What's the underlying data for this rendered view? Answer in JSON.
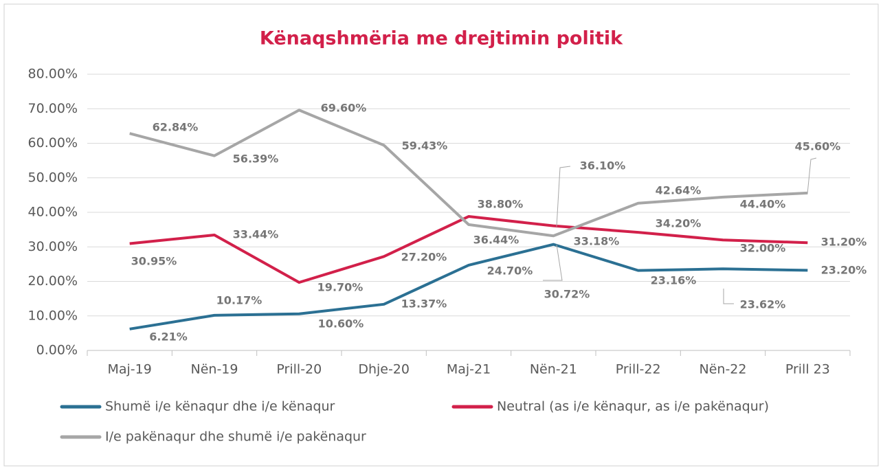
{
  "chart_data": {
    "type": "line",
    "title": "Kënaqshmëria me drejtimin politik",
    "categories": [
      "Maj-19",
      "Nën-19",
      "Prill-20",
      "Dhje-20",
      "Maj-21",
      "Nën-21",
      "Prill-22",
      "Nën-22",
      "Prill 23"
    ],
    "series": [
      {
        "name": "Shumë i/e kënaqur dhe i/e kënaqur",
        "color": "#2b7093",
        "values": [
          6.21,
          10.17,
          10.6,
          13.37,
          24.7,
          30.72,
          23.16,
          23.62,
          23.2
        ],
        "value_labels": [
          "6.21%",
          "10.17%",
          "10.60%",
          "13.37%",
          "24.70%",
          "30.72%",
          "23.16%",
          "23.62%",
          "23.20%"
        ]
      },
      {
        "name": "Neutral (as i/e kënaqur, as i/e pakënaqur)",
        "color": "#d2204a",
        "values": [
          30.95,
          33.44,
          19.7,
          27.2,
          38.8,
          36.1,
          34.2,
          32.0,
          31.2
        ],
        "value_labels": [
          "30.95%",
          "33.44%",
          "19.70%",
          "27.20%",
          "38.80%",
          "36.10%",
          "34.20%",
          "32.00%",
          "31.20%"
        ]
      },
      {
        "name": "I/e pakënaqur dhe shumë i/e pakënaqur",
        "color": "#a6a6a6",
        "values": [
          62.84,
          56.39,
          69.6,
          59.43,
          36.44,
          33.18,
          42.64,
          44.4,
          45.6
        ],
        "value_labels": [
          "62.84%",
          "56.39%",
          "69.60%",
          "59.43%",
          "36.44%",
          "33.18%",
          "42.64%",
          "44.40%",
          "45.60%"
        ]
      }
    ],
    "ylim": [
      0,
      80
    ],
    "yticks": [
      {
        "value": 0,
        "label": "0.00%"
      },
      {
        "value": 10,
        "label": "10.00%"
      },
      {
        "value": 20,
        "label": "20.00%"
      },
      {
        "value": 30,
        "label": "30.00%"
      },
      {
        "value": 40,
        "label": "40.00%"
      },
      {
        "value": 50,
        "label": "50.00%"
      },
      {
        "value": 60,
        "label": "60.00%"
      },
      {
        "value": 70,
        "label": "70.00%"
      },
      {
        "value": 80,
        "label": "80.00%"
      }
    ],
    "grid": true
  }
}
